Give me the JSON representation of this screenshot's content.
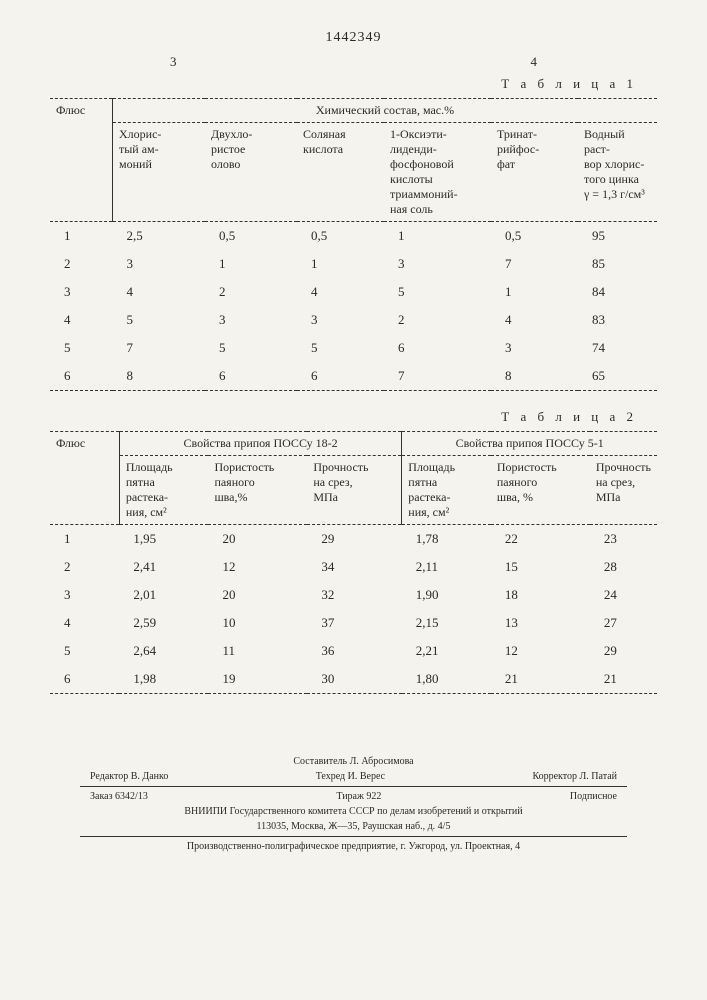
{
  "doc_number": "1442349",
  "page_left": "3",
  "page_right": "4",
  "table1": {
    "caption": "Т а б л и ц а   1",
    "col_flux": "Флюс",
    "group_header": "Химический состав, мас.%",
    "columns": [
      "Хлорис-\nтый ам-\nмоний",
      "Двухло-\nристое\nолово",
      "Соляная\nкислота",
      "1-Оксиэти-\nлиденди-\nфосфоновой\nкислоты\nтриаммоний-\nная соль",
      "Тринат-\nрийфос-\nфат",
      "Водный раст-\nвор хлорис-\nтого цинка\nγ = 1,3 г/см³"
    ],
    "rows": [
      [
        "1",
        "2,5",
        "0,5",
        "0,5",
        "1",
        "0,5",
        "95"
      ],
      [
        "2",
        "3",
        "1",
        "1",
        "3",
        "7",
        "85"
      ],
      [
        "3",
        "4",
        "2",
        "4",
        "5",
        "1",
        "84"
      ],
      [
        "4",
        "5",
        "3",
        "3",
        "2",
        "4",
        "83"
      ],
      [
        "5",
        "7",
        "5",
        "5",
        "6",
        "3",
        "74"
      ],
      [
        "6",
        "8",
        "6",
        "6",
        "7",
        "8",
        "65"
      ]
    ]
  },
  "table2": {
    "caption": "Т а б л и ц а   2",
    "col_flux": "Флюс",
    "group_a": "Свойства припоя ПОССу 18-2",
    "group_b": "Свойства припоя ПОССу 5-1",
    "columns": [
      "Площадь\nпятна\nрастека-\nния, см²",
      "Пористость\nпаяного\nшва,%",
      "Прочность\nна срез,\nМПа",
      "Площадь\nпятна\nрастека-\nния, см²",
      "Пористость\nпаяного\nшва, %",
      "Прочность\nна срез,\nМПа"
    ],
    "rows": [
      [
        "1",
        "1,95",
        "20",
        "29",
        "1,78",
        "22",
        "23"
      ],
      [
        "2",
        "2,41",
        "12",
        "34",
        "2,11",
        "15",
        "28"
      ],
      [
        "3",
        "2,01",
        "20",
        "32",
        "1,90",
        "18",
        "24"
      ],
      [
        "4",
        "2,59",
        "10",
        "37",
        "2,15",
        "13",
        "27"
      ],
      [
        "5",
        "2,64",
        "11",
        "36",
        "2,21",
        "12",
        "29"
      ],
      [
        "6",
        "1,98",
        "19",
        "30",
        "1,80",
        "21",
        "21"
      ]
    ]
  },
  "footer": {
    "compiler": "Составитель Л. Абросимова",
    "editor": "Редактор В. Данко",
    "techred": "Техред И. Верес",
    "corrector": "Корректор Л. Патай",
    "order": "Заказ 6342/13",
    "tirage": "Тираж 922",
    "sign": "Подписное",
    "org": "ВНИИПИ Государственного комитета СССР по делам изобретений и открытий",
    "addr": "113035, Москва, Ж—35, Раушская наб., д. 4/5",
    "print": "Производственно-полиграфическое предприятие, г. Ужгород, ул. Проектная, 4"
  }
}
